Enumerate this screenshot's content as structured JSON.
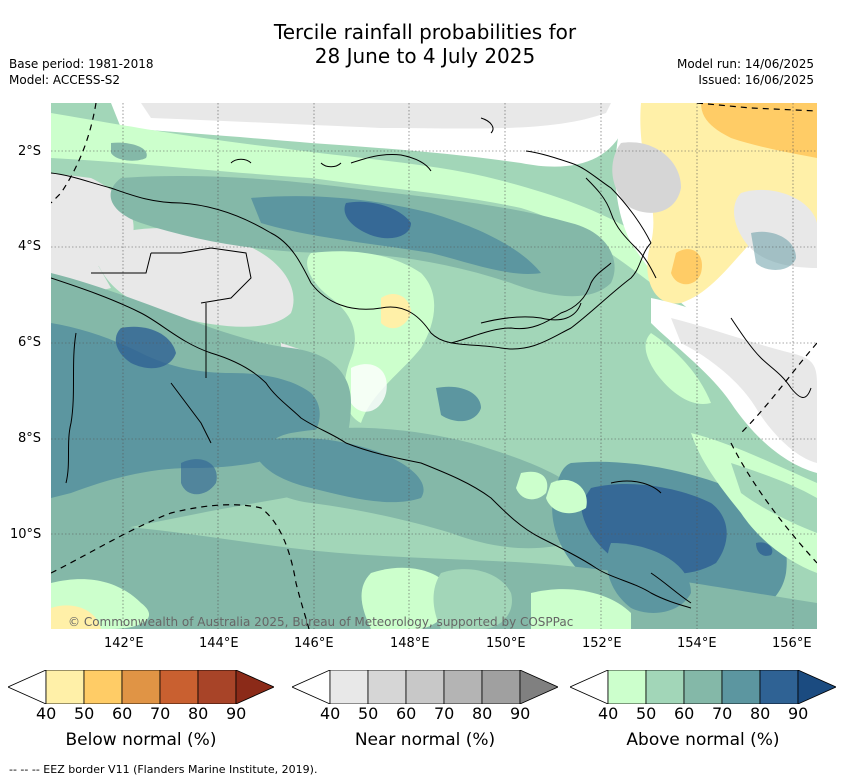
{
  "title_line1": "Tercile rainfall probabilities for",
  "title_line2": "28 June to 4 July 2025",
  "base_period": "Base period: 1981-2018",
  "model": "Model: ACCESS-S2",
  "model_run": "Model run: 14/06/2025",
  "issued": "Issued: 16/06/2025",
  "copyright": "© Commonwealth of Australia 2025, Bureau of Meteorology, supported by COSPPac",
  "footer": "-- -- -- EEZ border V11 (Flanders Marine Institute, 2019).",
  "axes": {
    "lat_labels": [
      "2°S",
      "4°S",
      "6°S",
      "8°S",
      "10°S"
    ],
    "lon_labels": [
      "142°E",
      "144°E",
      "146°E",
      "148°E",
      "150°E",
      "152°E",
      "154°E",
      "156°E"
    ]
  },
  "colorbars": [
    {
      "name": "below",
      "title": "Below normal (%)",
      "ticks": [
        "40",
        "50",
        "60",
        "70",
        "80",
        "90"
      ],
      "colors": [
        "#ffffff",
        "#fff0a8",
        "#ffcc66",
        "#e09445",
        "#c96030",
        "#a84428",
        "#8b2a18"
      ]
    },
    {
      "name": "near",
      "title": "Near normal (%)",
      "ticks": [
        "40",
        "50",
        "60",
        "70",
        "80",
        "90"
      ],
      "colors": [
        "#ffffff",
        "#e8e8e8",
        "#d6d6d6",
        "#c8c8c8",
        "#b4b4b4",
        "#a0a0a0",
        "#808080"
      ]
    },
    {
      "name": "above",
      "title": "Above normal (%)",
      "ticks": [
        "40",
        "50",
        "60",
        "70",
        "80",
        "90"
      ],
      "colors": [
        "#ffffff",
        "#ccffcc",
        "#a2d6b8",
        "#84b8a8",
        "#5c96a0",
        "#2f6294",
        "#1b4b80"
      ]
    }
  ]
}
